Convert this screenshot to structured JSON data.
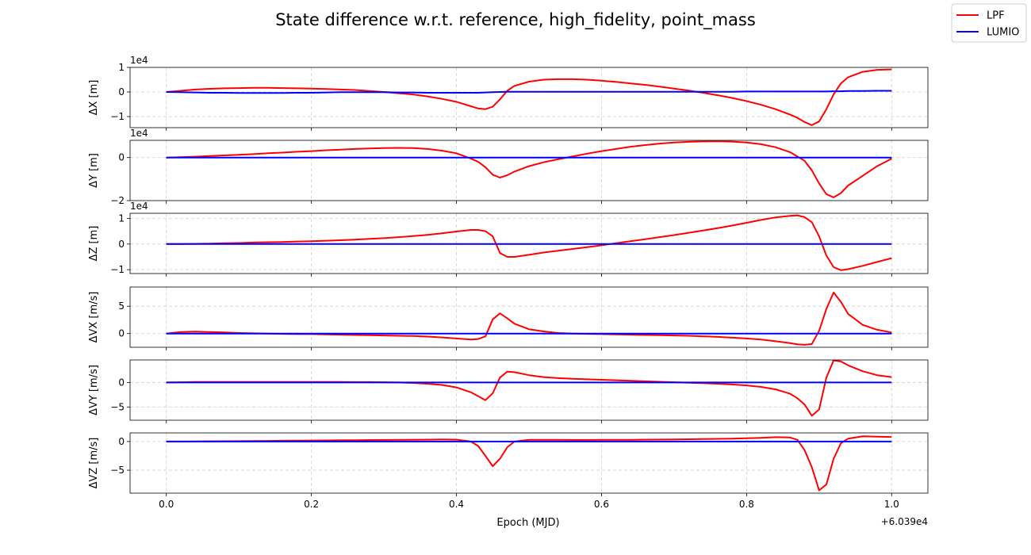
{
  "chart_data": {
    "type": "line",
    "title": "State difference w.r.t. reference, high_fidelity, point_mass",
    "xlabel": "Epoch (MJD)",
    "x_offset_label": "+6.039e4",
    "xlim": [
      -0.05,
      1.05
    ],
    "xticks": [
      0.0,
      0.2,
      0.4,
      0.6,
      0.8,
      1.0
    ],
    "xtick_labels": [
      "0.0",
      "0.2",
      "0.4",
      "0.6",
      "0.8",
      "1.0"
    ],
    "grid": true,
    "legend": {
      "position": "top-right",
      "entries": [
        {
          "name": "LPF",
          "color": "#ff0000"
        },
        {
          "name": "LUMIO",
          "color": "#0000ff"
        }
      ]
    },
    "x": [
      0.0,
      0.02,
      0.04,
      0.06,
      0.08,
      0.1,
      0.12,
      0.14,
      0.16,
      0.18,
      0.2,
      0.22,
      0.24,
      0.26,
      0.28,
      0.3,
      0.32,
      0.34,
      0.36,
      0.38,
      0.4,
      0.42,
      0.43,
      0.44,
      0.45,
      0.46,
      0.47,
      0.48,
      0.5,
      0.52,
      0.54,
      0.56,
      0.58,
      0.6,
      0.62,
      0.64,
      0.66,
      0.68,
      0.7,
      0.72,
      0.74,
      0.76,
      0.78,
      0.8,
      0.82,
      0.84,
      0.86,
      0.87,
      0.88,
      0.89,
      0.9,
      0.91,
      0.92,
      0.93,
      0.94,
      0.96,
      0.98,
      1.0
    ],
    "subplots": [
      {
        "ylabel": "ΔX [m]",
        "exponent_label": "1e4",
        "ylim": [
          -1.45,
          1.0
        ],
        "yticks": [
          -1,
          0,
          1
        ],
        "ytick_labels": [
          "−1",
          "0",
          "1"
        ],
        "series": [
          {
            "name": "LPF",
            "color": "#ff0000",
            "values": [
              0.0,
              0.05,
              0.1,
              0.13,
              0.15,
              0.16,
              0.17,
              0.17,
              0.16,
              0.15,
              0.14,
              0.12,
              0.1,
              0.08,
              0.04,
              0.0,
              -0.05,
              -0.1,
              -0.18,
              -0.28,
              -0.4,
              -0.58,
              -0.67,
              -0.7,
              -0.6,
              -0.3,
              0.05,
              0.25,
              0.42,
              0.5,
              0.52,
              0.52,
              0.5,
              0.46,
              0.41,
              0.35,
              0.29,
              0.22,
              0.14,
              0.06,
              -0.03,
              -0.13,
              -0.24,
              -0.37,
              -0.52,
              -0.7,
              -0.92,
              -1.05,
              -1.22,
              -1.35,
              -1.2,
              -0.7,
              -0.1,
              0.35,
              0.6,
              0.82,
              0.9,
              0.92
            ]
          },
          {
            "name": "LUMIO",
            "color": "#0000ff",
            "values": [
              0.0,
              -0.01,
              -0.02,
              -0.03,
              -0.03,
              -0.04,
              -0.04,
              -0.04,
              -0.04,
              -0.03,
              -0.03,
              -0.02,
              -0.01,
              -0.01,
              -0.01,
              -0.01,
              -0.02,
              -0.02,
              -0.03,
              -0.03,
              -0.03,
              -0.03,
              -0.03,
              -0.02,
              -0.01,
              0.0,
              0.01,
              0.01,
              0.01,
              0.01,
              0.01,
              0.01,
              0.01,
              0.01,
              0.01,
              0.01,
              0.01,
              0.01,
              0.01,
              0.01,
              0.01,
              0.01,
              0.01,
              0.02,
              0.02,
              0.02,
              0.02,
              0.02,
              0.02,
              0.02,
              0.02,
              0.02,
              0.03,
              0.03,
              0.04,
              0.04,
              0.05,
              0.05
            ]
          }
        ]
      },
      {
        "ylabel": "ΔY [m]",
        "exponent_label": "1e4",
        "ylim": [
          -2.0,
          0.8
        ],
        "yticks": [
          -2,
          0
        ],
        "ytick_labels": [
          "−2",
          "0"
        ],
        "series": [
          {
            "name": "LPF",
            "color": "#ff0000",
            "values": [
              0.0,
              0.02,
              0.04,
              0.07,
              0.1,
              0.13,
              0.16,
              0.2,
              0.23,
              0.27,
              0.3,
              0.34,
              0.37,
              0.4,
              0.42,
              0.44,
              0.45,
              0.44,
              0.4,
              0.32,
              0.2,
              -0.05,
              -0.2,
              -0.45,
              -0.8,
              -0.93,
              -0.82,
              -0.65,
              -0.4,
              -0.22,
              -0.08,
              0.05,
              0.18,
              0.3,
              0.4,
              0.5,
              0.58,
              0.65,
              0.7,
              0.73,
              0.75,
              0.76,
              0.74,
              0.7,
              0.62,
              0.48,
              0.25,
              0.05,
              -0.15,
              -0.6,
              -1.2,
              -1.7,
              -1.85,
              -1.65,
              -1.3,
              -0.85,
              -0.4,
              -0.05
            ]
          },
          {
            "name": "LUMIO",
            "color": "#0000ff",
            "values": [
              0.0,
              0.0,
              0.0,
              0.0,
              0.0,
              0.0,
              0.0,
              0.0,
              0.0,
              0.0,
              0.0,
              0.0,
              0.0,
              0.0,
              0.0,
              0.0,
              0.0,
              0.0,
              0.0,
              0.0,
              0.0,
              0.0,
              0.0,
              0.0,
              0.0,
              0.0,
              0.0,
              0.0,
              0.0,
              0.0,
              0.0,
              0.0,
              0.0,
              0.0,
              0.0,
              0.0,
              0.0,
              0.0,
              0.0,
              0.0,
              0.0,
              0.0,
              0.0,
              0.0,
              0.0,
              0.0,
              0.0,
              0.0,
              0.0,
              0.0,
              0.0,
              0.0,
              0.0,
              0.0,
              0.0,
              0.0,
              0.0,
              0.0
            ]
          }
        ]
      },
      {
        "ylabel": "ΔZ [m]",
        "exponent_label": "1e4",
        "ylim": [
          -1.15,
          1.2
        ],
        "yticks": [
          -1,
          0,
          1
        ],
        "ytick_labels": [
          "−1",
          "0",
          "1"
        ],
        "series": [
          {
            "name": "LPF",
            "color": "#ff0000",
            "values": [
              0.0,
              0.0,
              0.01,
              0.02,
              0.03,
              0.04,
              0.06,
              0.07,
              0.08,
              0.1,
              0.11,
              0.13,
              0.15,
              0.17,
              0.2,
              0.23,
              0.27,
              0.31,
              0.36,
              0.42,
              0.49,
              0.55,
              0.55,
              0.5,
              0.3,
              -0.35,
              -0.5,
              -0.5,
              -0.42,
              -0.33,
              -0.26,
              -0.19,
              -0.12,
              -0.05,
              0.03,
              0.11,
              0.19,
              0.27,
              0.35,
              0.44,
              0.53,
              0.62,
              0.72,
              0.83,
              0.94,
              1.04,
              1.1,
              1.12,
              1.05,
              0.85,
              0.3,
              -0.45,
              -0.9,
              -1.02,
              -0.98,
              -0.85,
              -0.7,
              -0.55
            ]
          },
          {
            "name": "LUMIO",
            "color": "#0000ff",
            "values": [
              0.0,
              0.0,
              0.0,
              0.0,
              0.0,
              0.0,
              0.0,
              0.0,
              0.0,
              0.0,
              0.0,
              0.0,
              0.0,
              0.0,
              0.0,
              0.0,
              0.0,
              0.0,
              0.0,
              0.0,
              0.0,
              0.0,
              0.0,
              0.0,
              0.0,
              0.0,
              0.0,
              0.0,
              0.0,
              0.0,
              0.0,
              0.0,
              0.0,
              0.0,
              0.0,
              0.0,
              0.0,
              0.0,
              0.0,
              0.0,
              0.0,
              0.0,
              0.0,
              0.0,
              0.0,
              0.0,
              0.0,
              0.0,
              0.0,
              0.0,
              0.0,
              0.0,
              0.0,
              0.0,
              0.0,
              0.0,
              0.0,
              0.0
            ]
          }
        ]
      },
      {
        "ylabel": "ΔVX [m/s]",
        "exponent_label": "",
        "ylim": [
          -2.5,
          8.5
        ],
        "yticks": [
          0,
          5
        ],
        "ytick_labels": [
          "0",
          "5"
        ],
        "series": [
          {
            "name": "LPF",
            "color": "#ff0000",
            "values": [
              0.0,
              0.3,
              0.35,
              0.3,
              0.2,
              0.1,
              0.05,
              0.0,
              -0.05,
              -0.1,
              -0.1,
              -0.15,
              -0.2,
              -0.25,
              -0.3,
              -0.35,
              -0.4,
              -0.45,
              -0.55,
              -0.7,
              -0.9,
              -1.1,
              -1.0,
              -0.5,
              2.6,
              3.7,
              2.8,
              1.8,
              0.8,
              0.4,
              0.1,
              0.0,
              -0.05,
              -0.1,
              -0.15,
              -0.2,
              -0.25,
              -0.3,
              -0.35,
              -0.4,
              -0.5,
              -0.6,
              -0.75,
              -0.9,
              -1.1,
              -1.4,
              -1.75,
              -1.95,
              -2.05,
              -1.9,
              0.5,
              4.5,
              7.5,
              5.8,
              3.6,
              1.6,
              0.7,
              0.2
            ]
          },
          {
            "name": "LUMIO",
            "color": "#0000ff",
            "values": [
              0.0,
              0.0,
              0.0,
              0.0,
              0.0,
              0.0,
              0.0,
              0.0,
              0.0,
              0.0,
              0.0,
              0.0,
              0.0,
              0.0,
              0.0,
              0.0,
              0.0,
              0.0,
              0.0,
              0.0,
              0.0,
              0.0,
              0.0,
              0.0,
              0.0,
              0.0,
              0.0,
              0.0,
              0.0,
              0.0,
              0.0,
              0.0,
              0.0,
              0.0,
              0.0,
              0.0,
              0.0,
              0.0,
              0.0,
              0.0,
              0.0,
              0.0,
              0.0,
              0.0,
              0.0,
              0.0,
              0.0,
              0.0,
              0.0,
              0.0,
              0.0,
              0.0,
              0.0,
              0.0,
              0.0,
              0.0,
              0.0,
              0.0
            ]
          }
        ]
      },
      {
        "ylabel": "ΔVY [m/s]",
        "exponent_label": "",
        "ylim": [
          -7.7,
          4.6
        ],
        "yticks": [
          -5,
          0
        ],
        "ytick_labels": [
          "−5",
          "0"
        ],
        "series": [
          {
            "name": "LPF",
            "color": "#ff0000",
            "values": [
              0.0,
              0.05,
              0.1,
              0.12,
              0.12,
              0.12,
              0.12,
              0.12,
              0.11,
              0.1,
              0.1,
              0.1,
              0.1,
              0.09,
              0.08,
              0.05,
              0.0,
              -0.1,
              -0.25,
              -0.5,
              -1.0,
              -2.0,
              -2.8,
              -3.6,
              -2.2,
              1.0,
              2.2,
              2.1,
              1.5,
              1.1,
              0.9,
              0.75,
              0.65,
              0.55,
              0.45,
              0.35,
              0.25,
              0.15,
              0.05,
              -0.05,
              -0.15,
              -0.25,
              -0.4,
              -0.6,
              -0.9,
              -1.4,
              -2.3,
              -3.2,
              -4.5,
              -6.8,
              -5.5,
              1.0,
              4.5,
              4.3,
              3.5,
              2.3,
              1.5,
              1.1
            ]
          },
          {
            "name": "LUMIO",
            "color": "#0000ff",
            "values": [
              0.0,
              0.0,
              0.0,
              0.0,
              0.0,
              0.0,
              0.0,
              0.0,
              0.0,
              0.0,
              0.0,
              0.0,
              0.0,
              0.0,
              0.0,
              0.0,
              0.0,
              0.0,
              0.0,
              0.0,
              0.0,
              0.0,
              0.0,
              0.0,
              0.0,
              0.0,
              0.0,
              0.0,
              0.0,
              0.0,
              0.0,
              0.0,
              0.0,
              0.0,
              0.0,
              0.0,
              0.0,
              0.0,
              0.0,
              0.0,
              0.0,
              0.0,
              0.0,
              0.0,
              0.0,
              0.0,
              0.0,
              0.0,
              0.0,
              0.0,
              0.0,
              0.0,
              0.0,
              0.0,
              0.0,
              0.0,
              0.0,
              0.0
            ]
          }
        ]
      },
      {
        "ylabel": "ΔVZ [m/s]",
        "exponent_label": "",
        "ylim": [
          -9.0,
          1.5
        ],
        "yticks": [
          -5,
          0
        ],
        "ytick_labels": [
          "−5",
          "0"
        ],
        "series": [
          {
            "name": "LPF",
            "color": "#ff0000",
            "values": [
              0.0,
              0.0,
              0.02,
              0.03,
              0.05,
              0.07,
              0.09,
              0.11,
              0.13,
              0.15,
              0.17,
              0.19,
              0.21,
              0.23,
              0.25,
              0.27,
              0.29,
              0.31,
              0.33,
              0.35,
              0.32,
              0.0,
              -0.8,
              -2.5,
              -4.3,
              -3.0,
              -1.0,
              0.0,
              0.3,
              0.3,
              0.28,
              0.27,
              0.27,
              0.28,
              0.29,
              0.3,
              0.32,
              0.34,
              0.36,
              0.39,
              0.42,
              0.46,
              0.5,
              0.56,
              0.65,
              0.75,
              0.7,
              0.3,
              -1.5,
              -4.5,
              -8.5,
              -7.5,
              -3.0,
              -0.3,
              0.5,
              0.9,
              0.85,
              0.8
            ]
          },
          {
            "name": "LUMIO",
            "color": "#0000ff",
            "values": [
              0.0,
              0.0,
              0.0,
              0.0,
              0.0,
              0.0,
              0.0,
              0.0,
              0.0,
              0.0,
              0.0,
              0.0,
              0.0,
              0.0,
              0.0,
              0.0,
              0.0,
              0.0,
              0.0,
              0.0,
              0.0,
              0.0,
              0.0,
              0.0,
              0.0,
              0.0,
              0.0,
              0.0,
              0.0,
              0.0,
              0.0,
              0.0,
              0.0,
              0.0,
              0.0,
              0.0,
              0.0,
              0.0,
              0.0,
              0.0,
              0.0,
              0.0,
              0.0,
              0.0,
              0.0,
              0.0,
              0.0,
              0.0,
              0.0,
              0.0,
              0.0,
              0.0,
              0.0,
              0.0,
              0.0,
              0.0,
              0.0,
              0.0
            ]
          }
        ]
      }
    ]
  }
}
